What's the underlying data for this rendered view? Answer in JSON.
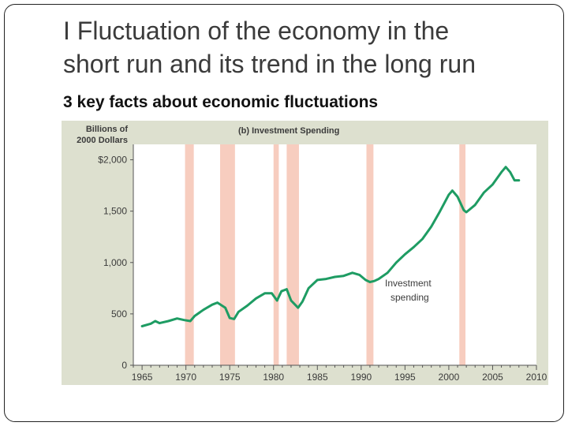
{
  "slide": {
    "title_line1": "I Fluctuation of the economy in the",
    "title_line2": "short run and its trend in the long run",
    "subtitle": "3 key facts about economic fluctuations"
  },
  "colors": {
    "panel_bg": "#dde0cf",
    "plot_bg": "#ffffff",
    "recession": "#f7cdbf",
    "line": "#1e9c63",
    "text": "#3b3b3b"
  },
  "chart_data": {
    "type": "line",
    "panel_title": "(b) Investment Spending",
    "ylabel_line1": "Billions of",
    "ylabel_line2": "2000 Dollars",
    "xlim": [
      1964,
      2010
    ],
    "ylim": [
      0,
      2150
    ],
    "y_ticks": [
      {
        "value": 0,
        "label": "0"
      },
      {
        "value": 500,
        "label": "500"
      },
      {
        "value": 1000,
        "label": "1,000"
      },
      {
        "value": 1500,
        "label": "1,500"
      },
      {
        "value": 2000,
        "label": "$2,000"
      }
    ],
    "x_ticks": [
      {
        "value": 1965,
        "label": "1965"
      },
      {
        "value": 1970,
        "label": "1970"
      },
      {
        "value": 1975,
        "label": "1975"
      },
      {
        "value": 1980,
        "label": "1980"
      },
      {
        "value": 1985,
        "label": "1985"
      },
      {
        "value": 1990,
        "label": "1990"
      },
      {
        "value": 1995,
        "label": "1995"
      },
      {
        "value": 2000,
        "label": "2000"
      },
      {
        "value": 2005,
        "label": "2005"
      },
      {
        "value": 2010,
        "label": "2010"
      }
    ],
    "recessions": [
      [
        1969.9,
        1970.9
      ],
      [
        1973.9,
        1975.6
      ],
      [
        1980.0,
        1980.6
      ],
      [
        1981.5,
        1982.9
      ],
      [
        1990.6,
        1991.4
      ],
      [
        2001.2,
        2001.9
      ]
    ],
    "annotation_line1": "Investment",
    "annotation_line2": "spending",
    "series": [
      {
        "name": "Investment spending",
        "x": [
          1965.0,
          1966.0,
          1966.5,
          1967.0,
          1968.0,
          1969.0,
          1969.8,
          1970.5,
          1971.0,
          1972.0,
          1973.0,
          1973.6,
          1974.5,
          1975.0,
          1975.5,
          1976.0,
          1977.0,
          1978.0,
          1979.0,
          1979.8,
          1980.4,
          1980.9,
          1981.5,
          1982.0,
          1982.8,
          1983.3,
          1984.0,
          1985.0,
          1986.0,
          1987.0,
          1988.0,
          1989.0,
          1989.8,
          1990.5,
          1991.0,
          1991.5,
          1992.0,
          1993.0,
          1994.0,
          1995.0,
          1996.0,
          1997.0,
          1998.0,
          1999.0,
          2000.0,
          2000.4,
          2001.0,
          2001.7,
          2002.0,
          2003.0,
          2004.0,
          2005.0,
          2006.0,
          2006.5,
          2007.0,
          2007.5,
          2008.0
        ],
        "values": [
          380,
          405,
          430,
          410,
          430,
          455,
          440,
          430,
          480,
          540,
          590,
          610,
          560,
          460,
          450,
          520,
          580,
          650,
          700,
          700,
          630,
          720,
          740,
          630,
          560,
          620,
          750,
          830,
          840,
          860,
          870,
          900,
          880,
          830,
          810,
          820,
          840,
          900,
          1000,
          1080,
          1150,
          1230,
          1350,
          1500,
          1660,
          1700,
          1640,
          1510,
          1490,
          1560,
          1680,
          1760,
          1880,
          1930,
          1880,
          1800,
          1800
        ]
      }
    ]
  }
}
